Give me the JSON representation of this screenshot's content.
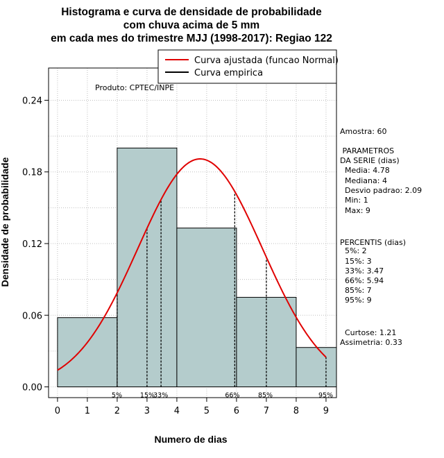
{
  "chart_data": {
    "type": "bar",
    "title_lines": [
      "Histograma e curva de densidade de probabilidade",
      "com chuva acima de 5 mm",
      "em cada mes do trimestre MJJ (1998-2017): Regiao 122"
    ],
    "xlabel": "Numero de dias",
    "ylabel": "Densidade de probabilidade",
    "xlim": [
      -0.3,
      9.35
    ],
    "ylim": [
      -0.009,
      0.267
    ],
    "x_ticks": [
      0,
      1,
      2,
      3,
      4,
      5,
      6,
      7,
      8,
      9
    ],
    "y_ticks": [
      0.0,
      0.06,
      0.12,
      0.18,
      0.24
    ],
    "y_tick_labels": [
      "0.00",
      "0.06",
      "0.12",
      "0.18",
      "0.24"
    ],
    "grid": true,
    "bar_color": "#b4cccc",
    "curve_color": "#e00000",
    "bins": [
      {
        "start": 0,
        "end": 2,
        "density": 0.058
      },
      {
        "start": 2,
        "end": 4,
        "density": 0.2
      },
      {
        "start": 4,
        "end": 6,
        "density": 0.133
      },
      {
        "start": 6,
        "end": 8,
        "density": 0.075
      },
      {
        "start": 8,
        "end": 9.35,
        "density": 0.033
      }
    ],
    "normal_fit": {
      "mean": 4.78,
      "sd": 2.09
    },
    "percentile_lines": [
      {
        "label": "5%",
        "x": 2
      },
      {
        "label": "15%",
        "x": 3
      },
      {
        "label": "33%",
        "x": 3.47
      },
      {
        "label": "66%",
        "x": 5.94
      },
      {
        "label": "85%",
        "x": 7
      },
      {
        "label": "95%",
        "x": 9
      }
    ],
    "legend": {
      "position": "top-right",
      "items": [
        {
          "label": "Curva ajustada (funcao Normal)",
          "color": "#e00000"
        },
        {
          "label": "Curva empirica",
          "color": "#000000"
        }
      ]
    },
    "annotation": "Produto: CPTEC/INPE"
  },
  "stats_panel": [
    "Amostra: 60",
    " PARAMETROS",
    "DA SERIE (dias)",
    "  Media: 4.78",
    "  Mediana: 4",
    "  Desvio padrao: 2.09",
    "  Min: 1",
    "  Max: 9",
    "PERCENTIS (dias)",
    "  5%: 2",
    "  15%: 3",
    "  33%: 3.47",
    "  66%: 5.94",
    "  85%: 7",
    "  95%: 9",
    "  Curtose: 1.21",
    "Assimetria: 0.33"
  ]
}
